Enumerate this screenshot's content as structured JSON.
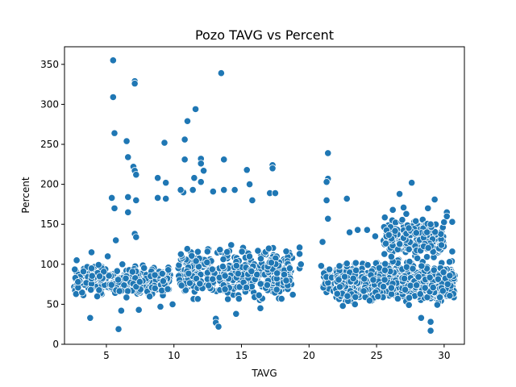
{
  "chart_data": {
    "type": "scatter",
    "title": "Pozo TAVG vs Percent",
    "xlabel": "TAVG",
    "ylabel": "Percent",
    "xlim": [
      1.9,
      31.5
    ],
    "ylim": [
      0,
      372
    ],
    "xticks": [
      5,
      10,
      15,
      20,
      25,
      30
    ],
    "yticks": [
      0,
      50,
      100,
      150,
      200,
      250,
      300,
      350
    ],
    "grid": false,
    "marker_color": "#1f77b4",
    "marker_edge": "#ffffff",
    "clusters": [
      {
        "xmin": 2.6,
        "xmax": 9.8,
        "ymin": 55,
        "ymax": 105,
        "n": 320
      },
      {
        "xmin": 10.3,
        "xmax": 18.8,
        "ymin": 45,
        "ymax": 130,
        "n": 420
      },
      {
        "xmin": 21.0,
        "xmax": 22.0,
        "ymin": 55,
        "ymax": 105,
        "n": 35
      },
      {
        "xmin": 22.0,
        "xmax": 30.8,
        "ymin": 45,
        "ymax": 110,
        "n": 900
      },
      {
        "xmin": 25.5,
        "xmax": 30.0,
        "ymin": 100,
        "ymax": 165,
        "n": 220
      }
    ],
    "points": [
      [
        5.5,
        355
      ],
      [
        5.5,
        309
      ],
      [
        7.1,
        329
      ],
      [
        7.1,
        326
      ],
      [
        13.5,
        339
      ],
      [
        11.6,
        294
      ],
      [
        11.0,
        279
      ],
      [
        5.6,
        264
      ],
      [
        10.8,
        256
      ],
      [
        6.5,
        254
      ],
      [
        9.3,
        252
      ],
      [
        6.6,
        234
      ],
      [
        13.7,
        231
      ],
      [
        10.8,
        231
      ],
      [
        12.0,
        232
      ],
      [
        12.0,
        226
      ],
      [
        7.0,
        222
      ],
      [
        7.1,
        217
      ],
      [
        7.2,
        212
      ],
      [
        8.8,
        208
      ],
      [
        11.5,
        208
      ],
      [
        9.4,
        202
      ],
      [
        12.0,
        203
      ],
      [
        12.2,
        217
      ],
      [
        15.4,
        218
      ],
      [
        15.6,
        200
      ],
      [
        17.3,
        224
      ],
      [
        17.3,
        220
      ],
      [
        21.4,
        239
      ],
      [
        21.4,
        207
      ],
      [
        21.3,
        203
      ],
      [
        27.6,
        202
      ],
      [
        26.7,
        188
      ],
      [
        29.3,
        181
      ],
      [
        21.3,
        180
      ],
      [
        22.8,
        182
      ],
      [
        5.4,
        183
      ],
      [
        6.6,
        184
      ],
      [
        8.8,
        183
      ],
      [
        9.4,
        182
      ],
      [
        7.2,
        180
      ],
      [
        10.7,
        190
      ],
      [
        10.5,
        193
      ],
      [
        11.4,
        193
      ],
      [
        12.9,
        191
      ],
      [
        13.7,
        193
      ],
      [
        14.5,
        193
      ],
      [
        15.8,
        180
      ],
      [
        17.1,
        189
      ],
      [
        17.5,
        189
      ],
      [
        5.6,
        170
      ],
      [
        6.6,
        165
      ],
      [
        21.4,
        157
      ],
      [
        30.2,
        165
      ],
      [
        30.2,
        160
      ],
      [
        30.6,
        153
      ],
      [
        29.0,
        150
      ],
      [
        5.7,
        130
      ],
      [
        7.1,
        138
      ],
      [
        7.2,
        134
      ],
      [
        3.9,
        115
      ],
      [
        3.8,
        33
      ],
      [
        5.9,
        19
      ],
      [
        6.1,
        42
      ],
      [
        7.4,
        43
      ],
      [
        9.0,
        47
      ],
      [
        9.9,
        50
      ],
      [
        13.1,
        32
      ],
      [
        13.1,
        27
      ],
      [
        13.3,
        22
      ],
      [
        16.4,
        45
      ],
      [
        14.6,
        38
      ],
      [
        19.3,
        121
      ],
      [
        19.3,
        113
      ],
      [
        21.0,
        128
      ],
      [
        22.5,
        48
      ],
      [
        23.4,
        50
      ],
      [
        23.0,
        140
      ],
      [
        23.6,
        143
      ],
      [
        24.9,
        135
      ],
      [
        28.3,
        33
      ],
      [
        29.0,
        17
      ],
      [
        29.0,
        28
      ],
      [
        30.4,
        103
      ],
      [
        30.6,
        116
      ],
      [
        22.8,
        101
      ],
      [
        24.3,
        143
      ],
      [
        18.8,
        62
      ],
      [
        19.3,
        95
      ],
      [
        19.4,
        100
      ],
      [
        20.9,
        98
      ],
      [
        2.8,
        105
      ],
      [
        2.7,
        83
      ],
      [
        2.9,
        78
      ],
      [
        3.3,
        91
      ],
      [
        3.9,
        95
      ],
      [
        4.5,
        85
      ],
      [
        5.1,
        110
      ],
      [
        26.2,
        168
      ],
      [
        27.0,
        171
      ],
      [
        27.2,
        163
      ],
      [
        27.9,
        154
      ],
      [
        28.8,
        170
      ],
      [
        29.8,
        124
      ]
    ]
  }
}
